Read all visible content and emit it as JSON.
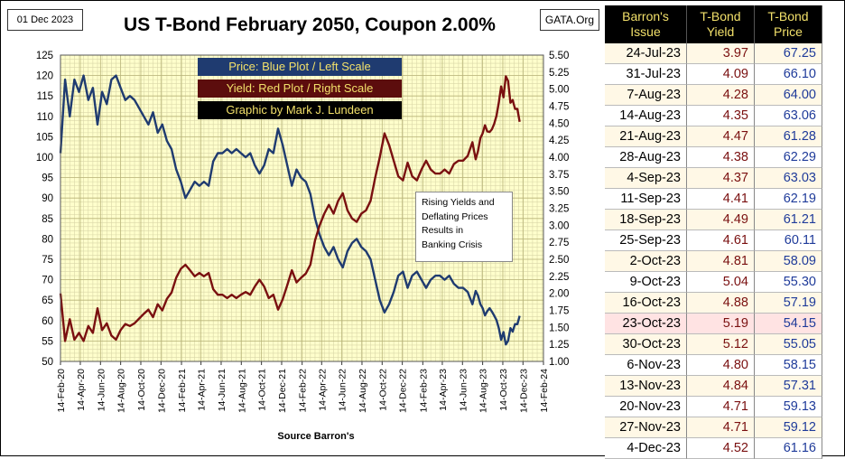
{
  "header": {
    "date": "01 Dec 2023",
    "title": "US T-Bond February 2050, Coupon 2.00%",
    "site": "GATA.Org"
  },
  "legend": {
    "price": "Price:  Blue Plot / Left Scale",
    "yield": "Yield:  Red Plot / Right Scale",
    "credit": "Graphic by Mark J. Lundeen"
  },
  "annotation": [
    "Rising Yields and",
    "Deflating Prices",
    "Results in",
    "Banking Crisis"
  ],
  "source": "Source Barron's",
  "colors": {
    "price": "#1f3b70",
    "yield": "#7a1010",
    "plot_bg": "#ffffcc"
  },
  "chart_data": {
    "type": "line",
    "x_tick_labels": [
      "14-Feb-20",
      "14-Apr-20",
      "14-Jun-20",
      "14-Aug-20",
      "14-Oct-20",
      "14-Dec-20",
      "14-Feb-21",
      "14-Apr-21",
      "14-Jun-21",
      "14-Aug-21",
      "14-Oct-21",
      "14-Dec-21",
      "14-Feb-22",
      "14-Apr-22",
      "14-Jun-22",
      "14-Aug-22",
      "14-Oct-22",
      "14-Dec-22",
      "14-Feb-23",
      "14-Apr-23",
      "14-Jun-23",
      "14-Aug-23",
      "14-Oct-23",
      "14-Dec-23",
      "14-Feb-24"
    ],
    "xlim": [
      "2020-02-14",
      "2024-02-14"
    ],
    "y_left": {
      "label": "Price",
      "lim": [
        50,
        125
      ],
      "ticks": [
        "50",
        "55",
        "60",
        "65",
        "70",
        "75",
        "80",
        "85",
        "90",
        "95",
        "100",
        "105",
        "110",
        "115",
        "120",
        "125"
      ]
    },
    "y_right": {
      "label": "Yield",
      "lim": [
        1.0,
        5.5
      ],
      "ticks": [
        "1.00",
        "1.25",
        "1.50",
        "1.75",
        "2.00",
        "2.25",
        "2.50",
        "2.75",
        "3.00",
        "3.25",
        "3.50",
        "3.75",
        "4.00",
        "4.25",
        "4.50",
        "4.75",
        "5.00",
        "5.25",
        "5.50"
      ]
    },
    "grid": true,
    "series": [
      {
        "name": "Price",
        "axis": "left",
        "points": [
          [
            "2020-02-14",
            101
          ],
          [
            "2020-02-28",
            119
          ],
          [
            "2020-03-13",
            110
          ],
          [
            "2020-03-27",
            119
          ],
          [
            "2020-04-10",
            116
          ],
          [
            "2020-04-24",
            120
          ],
          [
            "2020-05-08",
            114
          ],
          [
            "2020-05-22",
            117
          ],
          [
            "2020-06-05",
            108
          ],
          [
            "2020-06-19",
            116
          ],
          [
            "2020-07-03",
            113
          ],
          [
            "2020-07-17",
            119
          ],
          [
            "2020-07-31",
            120
          ],
          [
            "2020-08-14",
            117
          ],
          [
            "2020-08-28",
            114
          ],
          [
            "2020-09-11",
            115
          ],
          [
            "2020-09-25",
            114
          ],
          [
            "2020-10-09",
            112
          ],
          [
            "2020-10-23",
            110
          ],
          [
            "2020-11-06",
            108
          ],
          [
            "2020-11-20",
            111
          ],
          [
            "2020-12-04",
            106
          ],
          [
            "2020-12-18",
            108
          ],
          [
            "2021-01-01",
            104
          ],
          [
            "2021-01-15",
            102
          ],
          [
            "2021-01-29",
            97
          ],
          [
            "2021-02-12",
            94
          ],
          [
            "2021-02-26",
            90
          ],
          [
            "2021-03-12",
            92
          ],
          [
            "2021-03-26",
            94
          ],
          [
            "2021-04-09",
            93
          ],
          [
            "2021-04-23",
            94
          ],
          [
            "2021-05-07",
            93
          ],
          [
            "2021-05-21",
            99
          ],
          [
            "2021-06-04",
            101
          ],
          [
            "2021-06-18",
            101
          ],
          [
            "2021-07-02",
            102
          ],
          [
            "2021-07-16",
            101
          ],
          [
            "2021-07-30",
            102
          ],
          [
            "2021-08-13",
            101
          ],
          [
            "2021-08-27",
            100
          ],
          [
            "2021-09-10",
            101
          ],
          [
            "2021-09-24",
            98
          ],
          [
            "2021-10-08",
            96
          ],
          [
            "2021-10-22",
            98
          ],
          [
            "2021-11-05",
            102
          ],
          [
            "2021-11-19",
            101
          ],
          [
            "2021-12-03",
            107
          ],
          [
            "2021-12-17",
            103
          ],
          [
            "2021-12-31",
            98
          ],
          [
            "2022-01-14",
            93
          ],
          [
            "2022-01-28",
            97
          ],
          [
            "2022-02-11",
            95
          ],
          [
            "2022-02-25",
            94
          ],
          [
            "2022-03-11",
            91
          ],
          [
            "2022-03-25",
            85
          ],
          [
            "2022-04-08",
            81
          ],
          [
            "2022-04-22",
            78
          ],
          [
            "2022-05-06",
            76
          ],
          [
            "2022-05-20",
            78
          ],
          [
            "2022-06-03",
            75
          ],
          [
            "2022-06-17",
            73
          ],
          [
            "2022-07-01",
            77
          ],
          [
            "2022-07-15",
            79
          ],
          [
            "2022-07-29",
            80
          ],
          [
            "2022-08-12",
            78
          ],
          [
            "2022-08-26",
            77
          ],
          [
            "2022-09-09",
            75
          ],
          [
            "2022-09-23",
            70
          ],
          [
            "2022-10-07",
            65
          ],
          [
            "2022-10-21",
            62
          ],
          [
            "2022-11-04",
            64
          ],
          [
            "2022-11-18",
            67
          ],
          [
            "2022-12-02",
            71
          ],
          [
            "2022-12-16",
            72
          ],
          [
            "2022-12-30",
            68
          ],
          [
            "2023-01-13",
            71
          ],
          [
            "2023-01-27",
            72
          ],
          [
            "2023-02-10",
            70
          ],
          [
            "2023-02-24",
            68
          ],
          [
            "2023-03-10",
            70
          ],
          [
            "2023-03-24",
            71
          ],
          [
            "2023-04-07",
            71
          ],
          [
            "2023-04-21",
            70
          ],
          [
            "2023-05-05",
            71
          ],
          [
            "2023-05-19",
            69
          ],
          [
            "2023-06-02",
            68
          ],
          [
            "2023-06-16",
            68
          ],
          [
            "2023-06-30",
            67
          ],
          [
            "2023-07-14",
            64
          ],
          [
            "2023-07-24",
            67.25
          ],
          [
            "2023-07-31",
            66.1
          ],
          [
            "2023-08-07",
            64
          ],
          [
            "2023-08-14",
            63.06
          ],
          [
            "2023-08-21",
            61.28
          ],
          [
            "2023-08-28",
            62.29
          ],
          [
            "2023-09-04",
            63.03
          ],
          [
            "2023-09-11",
            62.19
          ],
          [
            "2023-09-18",
            61.21
          ],
          [
            "2023-09-25",
            60.11
          ],
          [
            "2023-10-02",
            58.09
          ],
          [
            "2023-10-09",
            55.3
          ],
          [
            "2023-10-16",
            57.19
          ],
          [
            "2023-10-23",
            54.15
          ],
          [
            "2023-10-30",
            55.05
          ],
          [
            "2023-11-06",
            58.15
          ],
          [
            "2023-11-13",
            57.31
          ],
          [
            "2023-11-20",
            59.13
          ],
          [
            "2023-11-27",
            59.12
          ],
          [
            "2023-12-04",
            61.16
          ]
        ]
      },
      {
        "name": "Yield",
        "axis": "right",
        "points": [
          [
            "2020-02-14",
            2.0
          ],
          [
            "2020-02-28",
            1.3
          ],
          [
            "2020-03-13",
            1.62
          ],
          [
            "2020-03-27",
            1.32
          ],
          [
            "2020-04-10",
            1.42
          ],
          [
            "2020-04-24",
            1.3
          ],
          [
            "2020-05-08",
            1.52
          ],
          [
            "2020-05-22",
            1.42
          ],
          [
            "2020-06-05",
            1.78
          ],
          [
            "2020-06-19",
            1.46
          ],
          [
            "2020-07-03",
            1.56
          ],
          [
            "2020-07-17",
            1.38
          ],
          [
            "2020-07-31",
            1.32
          ],
          [
            "2020-08-14",
            1.46
          ],
          [
            "2020-08-28",
            1.55
          ],
          [
            "2020-09-11",
            1.52
          ],
          [
            "2020-09-25",
            1.56
          ],
          [
            "2020-10-09",
            1.63
          ],
          [
            "2020-10-23",
            1.7
          ],
          [
            "2020-11-06",
            1.76
          ],
          [
            "2020-11-20",
            1.65
          ],
          [
            "2020-12-04",
            1.84
          ],
          [
            "2020-12-18",
            1.75
          ],
          [
            "2021-01-01",
            1.92
          ],
          [
            "2021-01-15",
            2.01
          ],
          [
            "2021-01-29",
            2.23
          ],
          [
            "2021-02-12",
            2.36
          ],
          [
            "2021-02-26",
            2.42
          ],
          [
            "2021-03-12",
            2.34
          ],
          [
            "2021-03-26",
            2.25
          ],
          [
            "2021-04-09",
            2.3
          ],
          [
            "2021-04-23",
            2.25
          ],
          [
            "2021-05-07",
            2.3
          ],
          [
            "2021-05-21",
            2.06
          ],
          [
            "2021-06-04",
            1.98
          ],
          [
            "2021-06-18",
            1.98
          ],
          [
            "2021-07-02",
            1.93
          ],
          [
            "2021-07-16",
            1.98
          ],
          [
            "2021-07-30",
            1.93
          ],
          [
            "2021-08-13",
            1.98
          ],
          [
            "2021-08-27",
            2.02
          ],
          [
            "2021-09-10",
            1.98
          ],
          [
            "2021-09-24",
            2.1
          ],
          [
            "2021-10-08",
            2.2
          ],
          [
            "2021-10-22",
            2.1
          ],
          [
            "2021-11-05",
            1.93
          ],
          [
            "2021-11-19",
            1.98
          ],
          [
            "2021-12-03",
            1.76
          ],
          [
            "2021-12-17",
            1.91
          ],
          [
            "2021-12-31",
            2.12
          ],
          [
            "2022-01-14",
            2.34
          ],
          [
            "2022-01-28",
            2.16
          ],
          [
            "2022-02-11",
            2.23
          ],
          [
            "2022-02-25",
            2.29
          ],
          [
            "2022-03-11",
            2.42
          ],
          [
            "2022-03-25",
            2.78
          ],
          [
            "2022-04-08",
            3.0
          ],
          [
            "2022-04-22",
            3.17
          ],
          [
            "2022-05-06",
            3.3
          ],
          [
            "2022-05-20",
            3.17
          ],
          [
            "2022-06-03",
            3.36
          ],
          [
            "2022-06-17",
            3.47
          ],
          [
            "2022-07-01",
            3.22
          ],
          [
            "2022-07-15",
            3.1
          ],
          [
            "2022-07-29",
            3.05
          ],
          [
            "2022-08-12",
            3.17
          ],
          [
            "2022-08-26",
            3.22
          ],
          [
            "2022-09-09",
            3.36
          ],
          [
            "2022-09-23",
            3.7
          ],
          [
            "2022-10-07",
            4.0
          ],
          [
            "2022-10-21",
            4.35
          ],
          [
            "2022-11-04",
            4.18
          ],
          [
            "2022-11-18",
            3.95
          ],
          [
            "2022-12-02",
            3.72
          ],
          [
            "2022-12-16",
            3.66
          ],
          [
            "2022-12-30",
            3.92
          ],
          [
            "2023-01-13",
            3.72
          ],
          [
            "2023-01-27",
            3.66
          ],
          [
            "2023-02-10",
            3.82
          ],
          [
            "2023-02-24",
            3.95
          ],
          [
            "2023-03-10",
            3.82
          ],
          [
            "2023-03-24",
            3.76
          ],
          [
            "2023-04-07",
            3.76
          ],
          [
            "2023-04-21",
            3.82
          ],
          [
            "2023-05-05",
            3.76
          ],
          [
            "2023-05-19",
            3.9
          ],
          [
            "2023-06-02",
            3.95
          ],
          [
            "2023-06-16",
            3.95
          ],
          [
            "2023-06-30",
            4.02
          ],
          [
            "2023-07-14",
            4.22
          ],
          [
            "2023-07-24",
            3.97
          ],
          [
            "2023-07-31",
            4.09
          ],
          [
            "2023-08-07",
            4.28
          ],
          [
            "2023-08-14",
            4.35
          ],
          [
            "2023-08-21",
            4.47
          ],
          [
            "2023-08-28",
            4.38
          ],
          [
            "2023-09-04",
            4.37
          ],
          [
            "2023-09-11",
            4.41
          ],
          [
            "2023-09-18",
            4.49
          ],
          [
            "2023-09-25",
            4.61
          ],
          [
            "2023-10-02",
            4.81
          ],
          [
            "2023-10-09",
            5.04
          ],
          [
            "2023-10-16",
            4.88
          ],
          [
            "2023-10-23",
            5.19
          ],
          [
            "2023-10-30",
            5.12
          ],
          [
            "2023-11-06",
            4.8
          ],
          [
            "2023-11-13",
            4.84
          ],
          [
            "2023-11-20",
            4.71
          ],
          [
            "2023-11-27",
            4.71
          ],
          [
            "2023-12-04",
            4.52
          ]
        ]
      }
    ]
  },
  "table": {
    "headers": [
      [
        "Barron's",
        "Issue"
      ],
      [
        "T-Bond",
        "Yield"
      ],
      [
        "T-Bond",
        "Price"
      ]
    ],
    "rows": [
      [
        "24-Jul-23",
        "3.97",
        "67.25"
      ],
      [
        "31-Jul-23",
        "4.09",
        "66.10"
      ],
      [
        "7-Aug-23",
        "4.28",
        "64.00"
      ],
      [
        "14-Aug-23",
        "4.35",
        "63.06"
      ],
      [
        "21-Aug-23",
        "4.47",
        "61.28"
      ],
      [
        "28-Aug-23",
        "4.38",
        "62.29"
      ],
      [
        "4-Sep-23",
        "4.37",
        "63.03"
      ],
      [
        "11-Sep-23",
        "4.41",
        "62.19"
      ],
      [
        "18-Sep-23",
        "4.49",
        "61.21"
      ],
      [
        "25-Sep-23",
        "4.61",
        "60.11"
      ],
      [
        "2-Oct-23",
        "4.81",
        "58.09"
      ],
      [
        "9-Oct-23",
        "5.04",
        "55.30"
      ],
      [
        "16-Oct-23",
        "4.88",
        "57.19"
      ],
      [
        "23-Oct-23",
        "5.19",
        "54.15"
      ],
      [
        "30-Oct-23",
        "5.12",
        "55.05"
      ],
      [
        "6-Nov-23",
        "4.80",
        "58.15"
      ],
      [
        "13-Nov-23",
        "4.84",
        "57.31"
      ],
      [
        "20-Nov-23",
        "4.71",
        "59.13"
      ],
      [
        "27-Nov-23",
        "4.71",
        "59.12"
      ],
      [
        "4-Dec-23",
        "4.52",
        "61.16"
      ]
    ],
    "highlight_row": 13
  }
}
